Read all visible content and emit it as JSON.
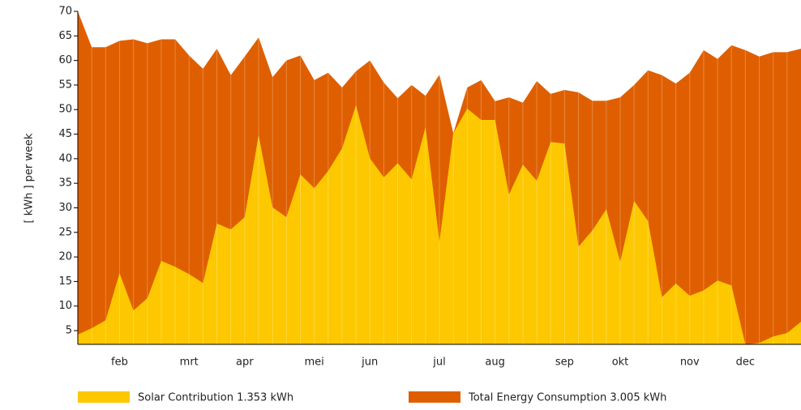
{
  "chart_data": {
    "type": "area",
    "y_label": "[ kWh ]  per week",
    "categories": [
      null,
      null,
      null,
      "feb",
      null,
      null,
      null,
      null,
      "mrt",
      null,
      null,
      null,
      "apr",
      null,
      null,
      null,
      null,
      "mei",
      null,
      null,
      null,
      "jun",
      null,
      null,
      null,
      null,
      "jul",
      null,
      null,
      null,
      "aug",
      null,
      null,
      null,
      null,
      "sep",
      null,
      null,
      null,
      "okt",
      null,
      null,
      null,
      null,
      "nov",
      null,
      null,
      null,
      "dec",
      null,
      null,
      null,
      null
    ],
    "series": [
      {
        "name": "Total Energy Consumption 3.005 kWh",
        "color": "#df5f00",
        "values": [
          70,
          62.7,
          62.7,
          64,
          64.3,
          63.5,
          64.3,
          64.3,
          61,
          58.3,
          62.4,
          57,
          60.8,
          64.7,
          56.6,
          60,
          61,
          56,
          57.5,
          54.5,
          57.8,
          60,
          55.5,
          52.3,
          55,
          52.8,
          57.1,
          45.2,
          54.5,
          56,
          51.7,
          52.5,
          51.4,
          55.8,
          53.2,
          54,
          53.5,
          51.8,
          51.8,
          52.5,
          55,
          58,
          57,
          55.3,
          57.5,
          62.1,
          60.3,
          63.1,
          62.1,
          60.8,
          61.7,
          61.7,
          62.4
        ]
      },
      {
        "name": "Solar Contribution 1.353 kWh",
        "color": "#fdc800",
        "values": [
          4.2,
          5.5,
          7.1,
          16.7,
          9.1,
          11.6,
          19.2,
          18,
          16.5,
          14.7,
          26.8,
          25.6,
          28.1,
          44.8,
          30.1,
          28.1,
          36.8,
          34,
          37.5,
          42.1,
          50.9,
          40.1,
          36.2,
          39.1,
          35.8,
          46.4,
          23.1,
          45.2,
          50.2,
          47.9,
          47.9,
          32.7,
          38.8,
          35.5,
          43.4,
          43.1,
          22.1,
          25.4,
          29.7,
          19,
          31.4,
          27.3,
          11.8,
          14.6,
          12.1,
          13.2,
          15.2,
          14.2,
          2.2,
          2.5,
          3.8,
          4.5,
          6.8
        ]
      }
    ],
    "ylim": [
      2.2,
      70
    ],
    "yticks": [
      5,
      10,
      15,
      20,
      25,
      30,
      35,
      40,
      45,
      50,
      55,
      60,
      65,
      70
    ]
  }
}
